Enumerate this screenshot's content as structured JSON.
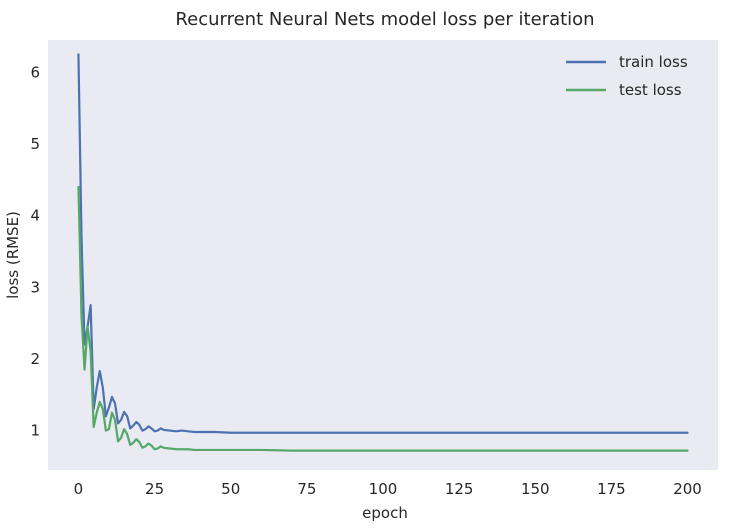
{
  "chart_data": {
    "type": "line",
    "title": "Recurrent Neural Nets model loss per iteration",
    "xlabel": "epoch",
    "ylabel": "loss (RMSE)",
    "xlim": [
      -10,
      210
    ],
    "ylim": [
      0.45,
      6.45
    ],
    "x_ticks": [
      0,
      25,
      50,
      75,
      100,
      125,
      150,
      175,
      200
    ],
    "y_ticks": [
      1,
      2,
      3,
      4,
      5,
      6
    ],
    "grid": false,
    "legend_position": "top-right",
    "background_color": "#eaeaf2",
    "x": [
      0,
      1,
      2,
      3,
      4,
      5,
      6,
      7,
      8,
      9,
      10,
      11,
      12,
      13,
      14,
      15,
      16,
      17,
      18,
      19,
      20,
      21,
      22,
      23,
      24,
      25,
      26,
      27,
      28,
      30,
      32,
      34,
      36,
      38,
      40,
      45,
      50,
      60,
      70,
      80,
      100,
      125,
      150,
      175,
      200
    ],
    "series": [
      {
        "name": "train loss",
        "color": "#4c72b0",
        "values": [
          6.25,
          3.7,
          2.2,
          2.45,
          2.75,
          1.3,
          1.6,
          1.83,
          1.6,
          1.2,
          1.32,
          1.47,
          1.38,
          1.1,
          1.15,
          1.26,
          1.2,
          1.03,
          1.07,
          1.12,
          1.08,
          1.0,
          1.02,
          1.06,
          1.03,
          0.99,
          1.0,
          1.03,
          1.01,
          1.0,
          0.99,
          1.0,
          0.99,
          0.98,
          0.98,
          0.98,
          0.97,
          0.97,
          0.97,
          0.97,
          0.97,
          0.97,
          0.97,
          0.97,
          0.97
        ]
      },
      {
        "name": "test loss",
        "color": "#55a868",
        "values": [
          4.4,
          2.6,
          1.85,
          2.45,
          2.1,
          1.05,
          1.25,
          1.4,
          1.3,
          1.0,
          1.02,
          1.25,
          1.15,
          0.85,
          0.9,
          1.02,
          0.95,
          0.8,
          0.83,
          0.88,
          0.84,
          0.76,
          0.78,
          0.82,
          0.79,
          0.74,
          0.75,
          0.78,
          0.76,
          0.75,
          0.74,
          0.74,
          0.74,
          0.73,
          0.73,
          0.73,
          0.73,
          0.73,
          0.72,
          0.72,
          0.72,
          0.72,
          0.72,
          0.72,
          0.72
        ]
      }
    ]
  }
}
